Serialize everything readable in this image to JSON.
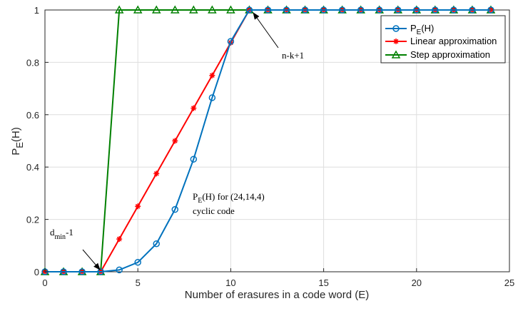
{
  "chart_data": {
    "type": "line",
    "xlabel": "Number of erasures in a code word (E)",
    "ylabel": {
      "main": "P",
      "sub": "E",
      "rest": "(H)"
    },
    "xlim": [
      0,
      25
    ],
    "ylim": [
      0,
      1
    ],
    "xticks": [
      0,
      5,
      10,
      15,
      20,
      25
    ],
    "yticks": [
      0,
      0.2,
      0.4,
      0.6,
      0.8,
      1
    ],
    "grid": true,
    "legend_placement": "top-right",
    "series": [
      {
        "key": "pe",
        "name": {
          "main": "P",
          "sub": "E",
          "rest": "(H)"
        },
        "color": "#0072BD",
        "marker": "circle",
        "x": [
          0,
          1,
          2,
          3,
          4,
          5,
          6,
          7,
          8,
          9,
          10,
          11,
          12,
          13,
          14,
          15,
          16,
          17,
          18,
          19,
          20,
          21,
          22,
          23,
          24
        ],
        "y": [
          0,
          0,
          0,
          0,
          0.007,
          0.036,
          0.107,
          0.238,
          0.43,
          0.665,
          0.88,
          1,
          1,
          1,
          1,
          1,
          1,
          1,
          1,
          1,
          1,
          1,
          1,
          1,
          1
        ]
      },
      {
        "key": "linear",
        "name": "Linear approximation",
        "color": "#FF0000",
        "marker": "asterisk",
        "x": [
          0,
          1,
          2,
          3,
          4,
          5,
          6,
          7,
          8,
          9,
          10,
          11,
          12,
          13,
          14,
          15,
          16,
          17,
          18,
          19,
          20,
          21,
          22,
          23,
          24
        ],
        "y": [
          0,
          0,
          0,
          0,
          0.125,
          0.25,
          0.375,
          0.5,
          0.625,
          0.75,
          0.875,
          1,
          1,
          1,
          1,
          1,
          1,
          1,
          1,
          1,
          1,
          1,
          1,
          1,
          1
        ]
      },
      {
        "key": "step",
        "name": "Step approximation",
        "color": "#008000",
        "marker": "triangle",
        "x": [
          0,
          1,
          2,
          3,
          4,
          5,
          6,
          7,
          8,
          9,
          10,
          11,
          12,
          13,
          14,
          15,
          16,
          17,
          18,
          19,
          20,
          21,
          22,
          23,
          24
        ],
        "y": [
          0,
          0,
          0,
          0,
          1,
          1,
          1,
          1,
          1,
          1,
          1,
          1,
          1,
          1,
          1,
          1,
          1,
          1,
          1,
          1,
          1,
          1,
          1,
          1,
          1
        ]
      }
    ],
    "annotations": {
      "nk": {
        "text": "n-k+1",
        "point": [
          11,
          1
        ]
      },
      "dmin": {
        "main": "d",
        "sub": "min",
        "rest": "-1",
        "point": [
          3,
          0
        ]
      },
      "pe_note": {
        "main": "P",
        "sub": "E",
        "rest": "(H) for (24,14,4)",
        "line2": "cyclic code"
      }
    }
  }
}
